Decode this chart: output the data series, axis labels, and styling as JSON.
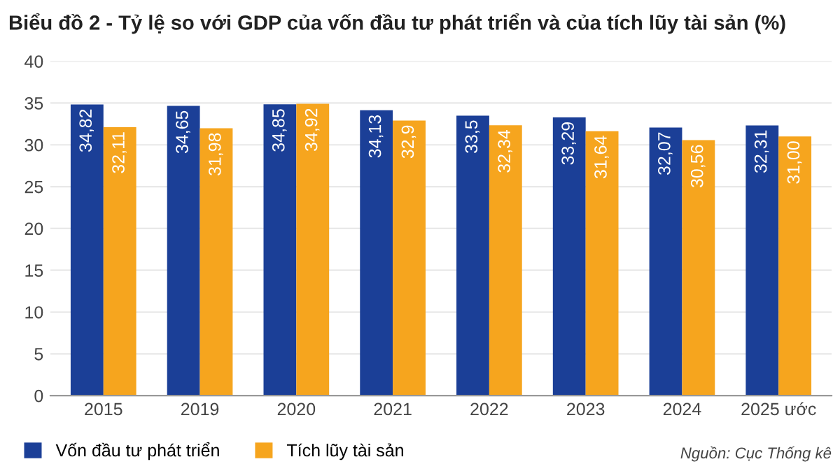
{
  "chart_data": {
    "type": "bar",
    "title": "Biểu đồ 2 - Tỷ lệ so với GDP của vốn đầu tư phát triển và của tích lũy tài sản (%)",
    "categories": [
      "2015",
      "2019",
      "2020",
      "2021",
      "2022",
      "2023",
      "2024",
      "2025 ước"
    ],
    "series": [
      {
        "name": "Vốn đầu tư phát triển",
        "color": "#1b3f97",
        "values": [
          34.82,
          34.65,
          34.85,
          34.13,
          33.5,
          33.29,
          32.07,
          32.31
        ],
        "value_labels": [
          "34,82",
          "34,65",
          "34,85",
          "34,13",
          "33,5",
          "33,29",
          "32,07",
          "32,31"
        ]
      },
      {
        "name": "Tích lũy tài sản",
        "color": "#f6a51e",
        "values": [
          32.11,
          31.98,
          34.92,
          32.9,
          32.34,
          31.64,
          30.56,
          31.0
        ],
        "value_labels": [
          "32,11",
          "31,98",
          "34,92",
          "32,9",
          "32,34",
          "31,64",
          "30,56",
          "31,00"
        ]
      }
    ],
    "ylim": [
      0,
      40
    ],
    "yticks": [
      0,
      5,
      10,
      15,
      20,
      25,
      30,
      35,
      40
    ],
    "grid": "y",
    "legend": "bottom left",
    "annotations": [
      "Nguồn: Cục Thống kê"
    ]
  }
}
